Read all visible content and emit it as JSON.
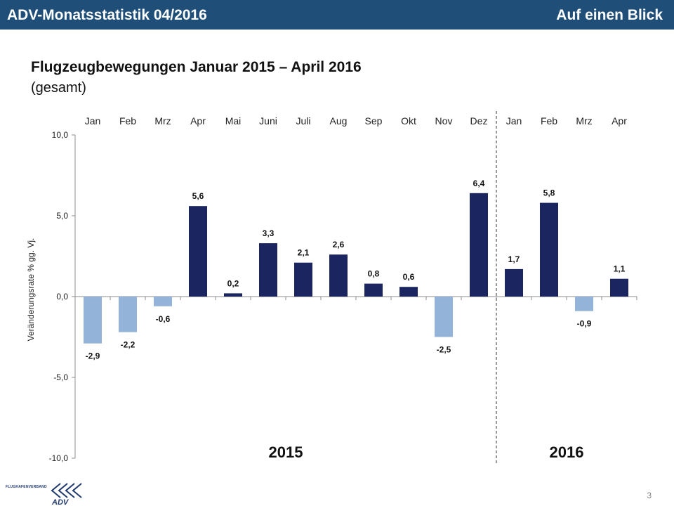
{
  "header": {
    "left_title": "ADV-Monatsstatistik 04/2016",
    "right_title": "Auf einen Blick"
  },
  "title": "Flugzeugbewegungen Januar 2015 – April 2016",
  "subtitle": "(gesamt)",
  "page_number": "3",
  "logo": {
    "text": "FLUGHAFENVERBAND",
    "wordmark": "ADV",
    "icon": "adv-chevrons-icon"
  },
  "colors": {
    "positive": "#1b2560",
    "negative": "#94b3d9",
    "header": "#1f4e79"
  },
  "chart_data": {
    "type": "bar",
    "categories": [
      "Jan",
      "Feb",
      "Mrz",
      "Apr",
      "Mai",
      "Juni",
      "Juli",
      "Aug",
      "Sep",
      "Okt",
      "Nov",
      "Dez",
      "Jan",
      "Feb",
      "Mrz",
      "Apr"
    ],
    "values": [
      -2.9,
      -2.2,
      -0.6,
      5.6,
      0.2,
      3.3,
      2.1,
      2.6,
      0.8,
      0.6,
      -2.5,
      6.4,
      1.7,
      5.8,
      -0.9,
      1.1
    ],
    "value_labels": [
      "-2,9",
      "-2,2",
      "-0,6",
      "5,6",
      "0,2",
      "3,3",
      "2,1",
      "2,6",
      "0,8",
      "0,6",
      "-2,5",
      "6,4",
      "1,7",
      "5,8",
      "-0,9",
      "1,1"
    ],
    "ylabel": "Veränderungsrate  % gg. Vj.",
    "xlabel": "",
    "ylim": [
      -10,
      10
    ],
    "yticks": [
      10,
      5,
      0,
      -5,
      -10
    ],
    "ytick_labels": [
      "10,0",
      "5,0",
      "0,0",
      "-5,0",
      "-10,0"
    ],
    "year_groups": [
      {
        "label": "2015",
        "start": 0,
        "end": 11
      },
      {
        "label": "2016",
        "start": 12,
        "end": 15
      }
    ],
    "legend": "none",
    "grid": false
  }
}
